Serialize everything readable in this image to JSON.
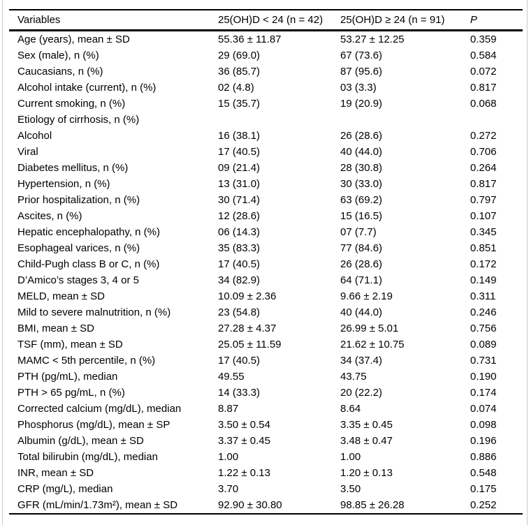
{
  "page": {
    "background": "#ffffff",
    "text_color": "#000000",
    "rule_color": "#000000"
  },
  "table": {
    "columns": [
      "Variables",
      "25(OH)D < 24 (n = 42)",
      "25(OH)D ≥ 24 (n = 91)",
      "P"
    ],
    "rows": [
      [
        "Age (years), mean ± SD",
        "55.36 ± 11.87",
        "53.27 ± 12.25",
        "0.359"
      ],
      [
        "Sex (male), n (%)",
        "29 (69.0)",
        "67 (73.6)",
        "0.584"
      ],
      [
        "Caucasians, n (%)",
        "36 (85.7)",
        "87 (95.6)",
        "0.072"
      ],
      [
        "Alcohol intake (current), n (%)",
        "02 (4.8)",
        "03 (3.3)",
        "0.817"
      ],
      [
        "Current smoking, n (%)",
        "15 (35.7)",
        "19 (20.9)",
        "0.068"
      ],
      [
        "Etiology of cirrhosis, n (%)",
        "",
        "",
        ""
      ],
      [
        "Alcohol",
        "16 (38.1)",
        "26 (28.6)",
        "0.272"
      ],
      [
        "Viral",
        "17 (40.5)",
        "40 (44.0)",
        "0.706"
      ],
      [
        "Diabetes mellitus, n (%)",
        "09 (21.4)",
        "28 (30.8)",
        "0.264"
      ],
      [
        "Hypertension, n (%)",
        "13 (31.0)",
        "30 (33.0)",
        "0.817"
      ],
      [
        "Prior hospitalization, n (%)",
        "30 (71.4)",
        "63 (69.2)",
        "0.797"
      ],
      [
        "Ascites, n (%)",
        "12 (28.6)",
        "15 (16.5)",
        "0.107"
      ],
      [
        "Hepatic encephalopathy, n (%)",
        "06 (14.3)",
        "07 (7.7)",
        "0.345"
      ],
      [
        "Esophageal varices, n (%)",
        "35 (83.3)",
        "77 (84.6)",
        "0.851"
      ],
      [
        "Child-Pugh class B or C, n (%)",
        "17 (40.5)",
        "26 (28.6)",
        "0.172"
      ],
      [
        "D’Amico’s stages 3, 4 or 5",
        "34 (82.9)",
        "64 (71.1)",
        "0.149"
      ],
      [
        "MELD, mean ± SD",
        "10.09 ± 2.36",
        "9.66 ± 2.19",
        "0.311"
      ],
      [
        "Mild to severe malnutrition, n (%)",
        "23 (54.8)",
        "40 (44.0)",
        "0.246"
      ],
      [
        "BMI, mean ± SD",
        "27.28 ± 4.37",
        "26.99 ± 5.01",
        "0.756"
      ],
      [
        "TSF (mm), mean ± SD",
        "25.05 ± 11.59",
        "21.62 ± 10.75",
        "0.089"
      ],
      [
        "MAMC < 5th percentile, n (%)",
        "17 (40.5)",
        "34 (37.4)",
        "0.731"
      ],
      [
        "PTH (pg/mL), median",
        "49.55",
        "43.75",
        "0.190"
      ],
      [
        "PTH > 65 pg/mL, n (%)",
        "14 (33.3)",
        "20 (22.2)",
        "0.174"
      ],
      [
        "Corrected calcium (mg/dL), median",
        "8.87",
        "8.64",
        "0.074"
      ],
      [
        "Phosphorus (mg/dL), mean ± SP",
        "3.50 ± 0.54",
        "3.35 ± 0.45",
        "0.098"
      ],
      [
        "Albumin (g/dL), mean ± SD",
        "3.37 ± 0.45",
        "3.48 ± 0.47",
        "0.196"
      ],
      [
        "Total bilirubin (mg/dL), median",
        "1.00",
        "1.00",
        "0.886"
      ],
      [
        "INR, mean ± SD",
        "1.22 ± 0.13",
        "1.20 ± 0.13",
        "0.548"
      ],
      [
        "CRP (mg/L), median",
        "3.70",
        "3.50",
        "0.175"
      ],
      [
        "GFR (mL/min/1.73m²), mean ± SD",
        "92.90 ± 30.80",
        "98.85 ± 26.28",
        "0.252"
      ]
    ]
  }
}
